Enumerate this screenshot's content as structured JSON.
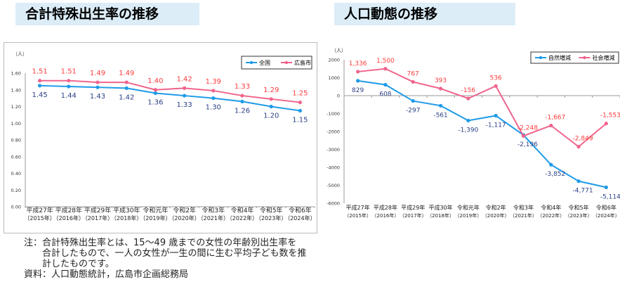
{
  "chart_data": [
    {
      "type": "line",
      "title": "合計特殊出生率の推移",
      "ylabel": "（人）",
      "ylim": [
        0,
        1.6
      ],
      "yticks": [
        "0.00",
        "0.20",
        "0.40",
        "0.60",
        "0.80",
        "1.00",
        "1.20",
        "1.40",
        "1.60"
      ],
      "categories": [
        "平成27年",
        "平成28年",
        "平成29年",
        "平成30年",
        "令和元年",
        "令和2年",
        "令和3年",
        "令和4年",
        "令和5年",
        "令和6年"
      ],
      "categories_sub": [
        "（2015年）",
        "（2016年）",
        "（2017年）",
        "（2018年）",
        "（2019年）",
        "（2020年）",
        "（2021年）",
        "（2022年）",
        "（2023年）",
        "（2024年）"
      ],
      "legend": "top-right",
      "series": [
        {
          "name": "全国",
          "color": "#1e9be8",
          "label_color": "#2b3f86",
          "values": [
            1.45,
            1.44,
            1.43,
            1.42,
            1.36,
            1.33,
            1.3,
            1.26,
            1.2,
            1.15
          ],
          "labels": [
            "1.45",
            "1.44",
            "1.43",
            "1.42",
            "1.36",
            "1.33",
            "1.30",
            "1.26",
            "1.20",
            "1.15"
          ]
        },
        {
          "name": "広島市",
          "color": "#f0648c",
          "label_color": "#ff3a3a",
          "values": [
            1.51,
            1.51,
            1.49,
            1.49,
            1.4,
            1.42,
            1.39,
            1.33,
            1.29,
            1.25
          ],
          "labels": [
            "1.51",
            "1.51",
            "1.49",
            "1.49",
            "1.40",
            "1.42",
            "1.39",
            "1.33",
            "1.29",
            "1.25"
          ]
        }
      ]
    },
    {
      "type": "line",
      "title": "人口動態の推移",
      "ylabel": "（人）",
      "ylim": [
        -6000,
        2000
      ],
      "yticks": [
        "-6000",
        "-5000",
        "-4000",
        "-3000",
        "-2000",
        "-1000",
        "0",
        "1000",
        "2000"
      ],
      "categories": [
        "平成27年",
        "平成28年",
        "平成29年",
        "平成30年",
        "令和元年",
        "令和2年",
        "令和3年",
        "令和4年",
        "令和5年",
        "令和6年"
      ],
      "categories_sub": [
        "（2015年）",
        "（2016年）",
        "（2017年）",
        "（2018年）",
        "（2019年）",
        "（2020年）",
        "（2021年）",
        "（2022年）",
        "（2023年）",
        "（2024年）"
      ],
      "legend": "top-right",
      "series": [
        {
          "name": "自然増減",
          "color": "#1e9be8",
          "label_color": "#2b3f86",
          "values": [
            829,
            608,
            -297,
            -561,
            -1390,
            -1117,
            -2196,
            -3852,
            -4771,
            -5114
          ],
          "labels": [
            "829",
            "608",
            "-297",
            "-561",
            "-1,390",
            "-1,117",
            "-2,196",
            "-3,852",
            "-4,771",
            "-5,114"
          ]
        },
        {
          "name": "社会増減",
          "color": "#f0648c",
          "label_color": "#ff3a3a",
          "values": [
            1336,
            1500,
            767,
            393,
            -156,
            536,
            -2248,
            -1667,
            -2849,
            -1553
          ],
          "labels": [
            "1,336",
            "1,500",
            "767",
            "393",
            "-156",
            "536",
            "-2,248",
            "-1,667",
            "-2,849",
            "-1,553"
          ]
        }
      ]
    }
  ],
  "note": {
    "lines": [
      "注：合計特殊出生率とは、15～49 歳までの女性の年齢別出生率を",
      "　　合計したもので、一人の女性が一生の間に生む平均子ども数を推",
      "　　計したものです。"
    ],
    "source": "資料：人口動態統計，広島市企画総務局"
  }
}
